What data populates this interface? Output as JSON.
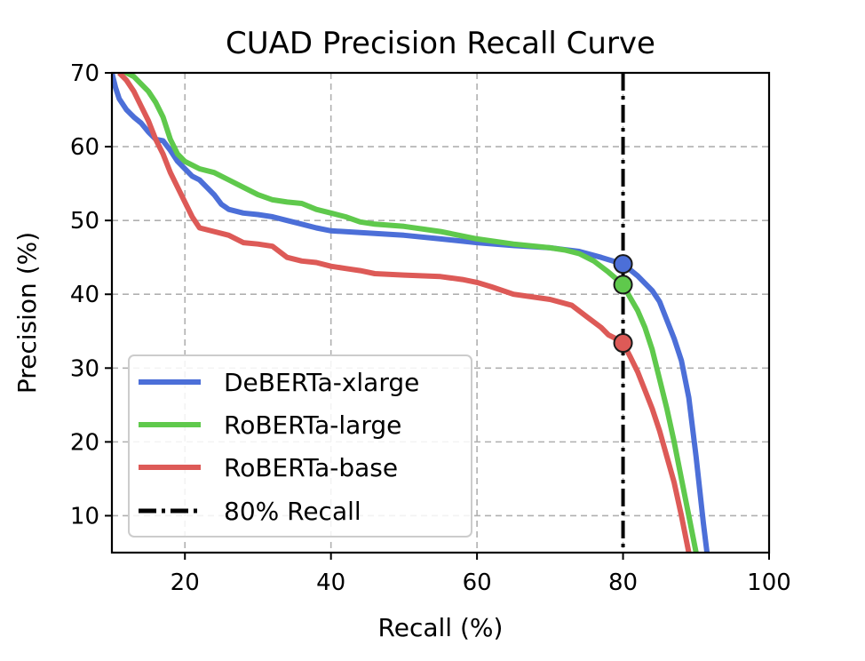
{
  "chart_data": {
    "type": "line",
    "title": "CUAD Precision Recall Curve",
    "xlabel": "Recall (%)",
    "ylabel": "Precision (%)",
    "xlim": [
      10,
      100
    ],
    "ylim": [
      5,
      70
    ],
    "xticks": [
      20,
      40,
      60,
      80,
      100
    ],
    "yticks": [
      10,
      20,
      30,
      40,
      50,
      60,
      70
    ],
    "grid": true,
    "legend_position": "bottom-left",
    "series": [
      {
        "name": "DeBERTa-xlarge",
        "color": "#4c6fd8",
        "x": [
          10,
          10.5,
          11,
          12,
          13,
          14,
          15,
          16,
          17,
          18,
          19,
          20,
          21,
          22,
          23,
          24,
          25,
          26,
          28,
          30,
          32,
          34,
          36,
          38,
          40,
          45,
          50,
          55,
          60,
          65,
          70,
          74,
          77,
          80,
          82,
          84,
          85,
          86,
          87,
          88,
          89,
          90,
          91,
          91.5
        ],
        "y": [
          70,
          68,
          66.5,
          65,
          64,
          63.2,
          62,
          61,
          60.8,
          59.5,
          58,
          57,
          56,
          55.5,
          54.5,
          53.5,
          52.2,
          51.5,
          51,
          50.8,
          50.5,
          50,
          49.5,
          49,
          48.6,
          48.3,
          48,
          47.5,
          47,
          46.6,
          46.3,
          45.8,
          45,
          44.1,
          42.5,
          40.5,
          39,
          36.5,
          34,
          31,
          26,
          18,
          9,
          5
        ]
      },
      {
        "name": "RoBERTa-large",
        "color": "#5fc94c",
        "x": [
          10,
          12,
          13,
          14,
          15,
          16,
          17,
          18,
          19,
          20,
          21,
          22,
          24,
          26,
          28,
          30,
          32,
          34,
          36,
          38,
          40,
          42,
          44,
          46,
          50,
          55,
          60,
          65,
          70,
          72,
          74,
          76,
          78,
          80,
          81,
          82,
          83,
          84,
          85,
          86,
          87,
          88,
          89,
          90
        ],
        "y": [
          73,
          70,
          69.5,
          68.5,
          67.5,
          66,
          64,
          61,
          59,
          58,
          57.5,
          57,
          56.5,
          55.5,
          54.5,
          53.5,
          52.8,
          52.5,
          52.3,
          51.5,
          51,
          50.5,
          49.8,
          49.5,
          49.2,
          48.5,
          47.5,
          46.8,
          46.3,
          46,
          45.5,
          44.5,
          43,
          41.3,
          39.5,
          37.8,
          35.5,
          32.5,
          28.5,
          24.5,
          20,
          15,
          10,
          5
        ]
      },
      {
        "name": "RoBERTa-base",
        "color": "#dd5a57",
        "x": [
          11,
          12,
          13,
          14,
          15,
          16,
          17,
          18,
          19,
          20,
          21,
          22,
          24,
          26,
          28,
          30,
          32,
          34,
          36,
          38,
          40,
          42,
          44,
          46,
          50,
          55,
          58,
          60,
          62,
          65,
          70,
          73,
          75,
          77,
          78,
          79,
          80,
          81,
          82,
          83,
          84,
          85,
          86,
          87,
          88,
          89
        ],
        "y": [
          70,
          69,
          67.5,
          65.5,
          63.5,
          61,
          59,
          56.5,
          54.5,
          52.5,
          50.5,
          49,
          48.5,
          48,
          47,
          46.8,
          46.5,
          45,
          44.5,
          44.3,
          43.8,
          43.5,
          43.2,
          42.8,
          42.6,
          42.4,
          42,
          41.6,
          41,
          40,
          39.3,
          38.5,
          37,
          35.5,
          34.5,
          34,
          33.4,
          31.5,
          29.5,
          27,
          24.5,
          21.5,
          18,
          14.5,
          10,
          5
        ]
      }
    ],
    "reference_line": {
      "name": "80% Recall",
      "x": 80,
      "color": "#000000"
    },
    "markers": [
      {
        "series": "DeBERTa-xlarge",
        "x": 80,
        "y": 44.1,
        "color": "#4c6fd8"
      },
      {
        "series": "RoBERTa-large",
        "x": 80,
        "y": 41.3,
        "color": "#5fc94c"
      },
      {
        "series": "RoBERTa-base",
        "x": 80,
        "y": 33.4,
        "color": "#dd5a57"
      }
    ]
  }
}
